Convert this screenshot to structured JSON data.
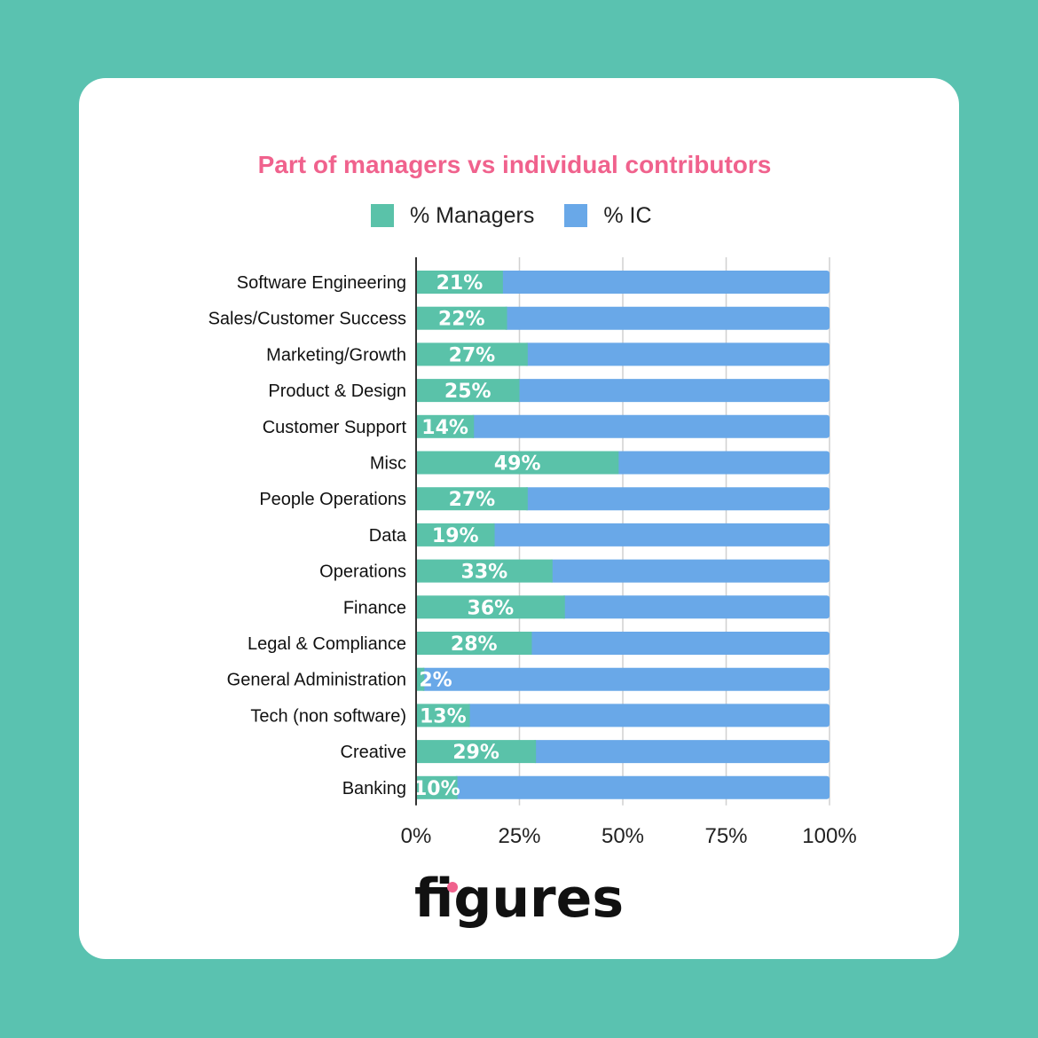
{
  "brand": {
    "logo_text": "figures",
    "accent_dot_color": "#f0628d"
  },
  "colors": {
    "background": "#5ac2b0",
    "card": "#ffffff",
    "title": "#f0628d",
    "managers": "#5ac2a9",
    "ic": "#69a8e8"
  },
  "chart_data": {
    "type": "bar",
    "orientation": "horizontal",
    "stacked": true,
    "title": "Part of managers vs individual contributors",
    "categories": [
      "Software Engineering",
      "Sales/Customer Success",
      "Marketing/Growth",
      "Product & Design",
      "Customer Support",
      "Misc",
      "People Operations",
      "Data",
      "Operations",
      "Finance",
      "Legal & Compliance",
      "General Administration",
      "Tech (non software)",
      "Creative",
      "Banking"
    ],
    "series": [
      {
        "name": "% Managers",
        "values": [
          21,
          22,
          27,
          25,
          14,
          49,
          27,
          19,
          33,
          36,
          28,
          2,
          13,
          29,
          10
        ]
      },
      {
        "name": "% IC",
        "values": [
          79,
          78,
          73,
          75,
          86,
          51,
          73,
          81,
          67,
          64,
          72,
          98,
          87,
          71,
          90
        ]
      }
    ],
    "data_labels": [
      "21%",
      "22%",
      "27%",
      "25%",
      "14%",
      "49%",
      "27%",
      "19%",
      "33%",
      "36%",
      "28%",
      "2%",
      "13%",
      "29%",
      "10%"
    ],
    "x_ticks": [
      "0%",
      "25%",
      "50%",
      "75%",
      "100%"
    ],
    "xlim": [
      0,
      100
    ],
    "grid": true,
    "legend_position": "top"
  }
}
